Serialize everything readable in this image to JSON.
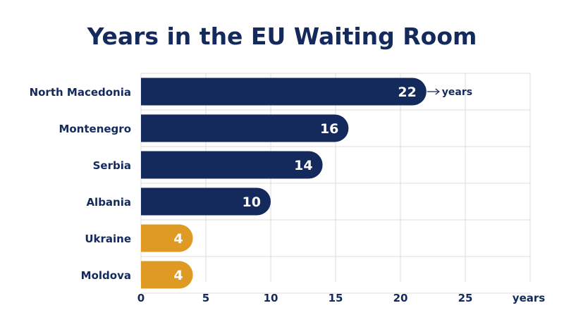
{
  "chart_data": {
    "type": "bar",
    "orientation": "horizontal",
    "title": "Years in the EU Waiting Room",
    "categories": [
      "North Macedonia",
      "Montenegro",
      "Serbia",
      "Albania",
      "Ukraine",
      "Moldova"
    ],
    "values": [
      22,
      16,
      14,
      10,
      4,
      4
    ],
    "value_labels": [
      "22",
      "16",
      "14",
      "10",
      "4",
      "4"
    ],
    "first_bar_annotation": "years",
    "xlabel": "years",
    "ylabel": "",
    "xlim": [
      0,
      30
    ],
    "xticks": [
      0,
      5,
      10,
      15,
      20,
      25
    ],
    "xtick_labels": [
      "0",
      "5",
      "10",
      "15",
      "20",
      "25"
    ],
    "grid": true,
    "colors": {
      "primary": "#142a5c",
      "highlight": "#de9a22",
      "grid": "#dcdcdc"
    },
    "bar_colors": [
      "#142a5c",
      "#142a5c",
      "#142a5c",
      "#142a5c",
      "#de9a22",
      "#de9a22"
    ]
  }
}
